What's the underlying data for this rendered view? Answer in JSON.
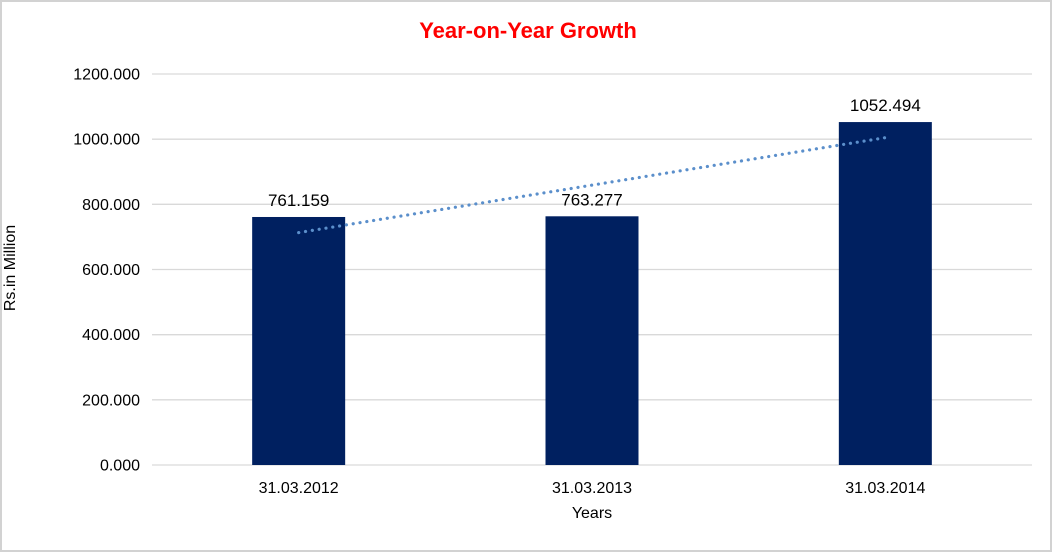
{
  "chart_data": {
    "type": "bar",
    "title": "Year-on-Year Growth",
    "categories": [
      "31.03.2012",
      "31.03.2013",
      "31.03.2014"
    ],
    "values": [
      761.159,
      763.277,
      1052.494
    ],
    "data_labels": [
      "761.159",
      "763.277",
      "1052.494"
    ],
    "xlabel": "Years",
    "ylabel": "Rs.in Million",
    "ylim": [
      0,
      1200
    ],
    "ytick_step": 200,
    "ytick_labels": [
      "0.000",
      "200.000",
      "400.000",
      "600.000",
      "800.000",
      "1000.000",
      "1200.000"
    ],
    "grid": true,
    "legend": "none",
    "trendline": "linear-dotted"
  },
  "colors": {
    "title": "#ff0000",
    "bar": "#002060",
    "trendline": "#5b8fcb",
    "gridline": "#d9d9d9",
    "axis_line": "#d9d9d9",
    "text": "#000000",
    "background": "#ffffff",
    "frame_border": "#d2d2d2"
  }
}
